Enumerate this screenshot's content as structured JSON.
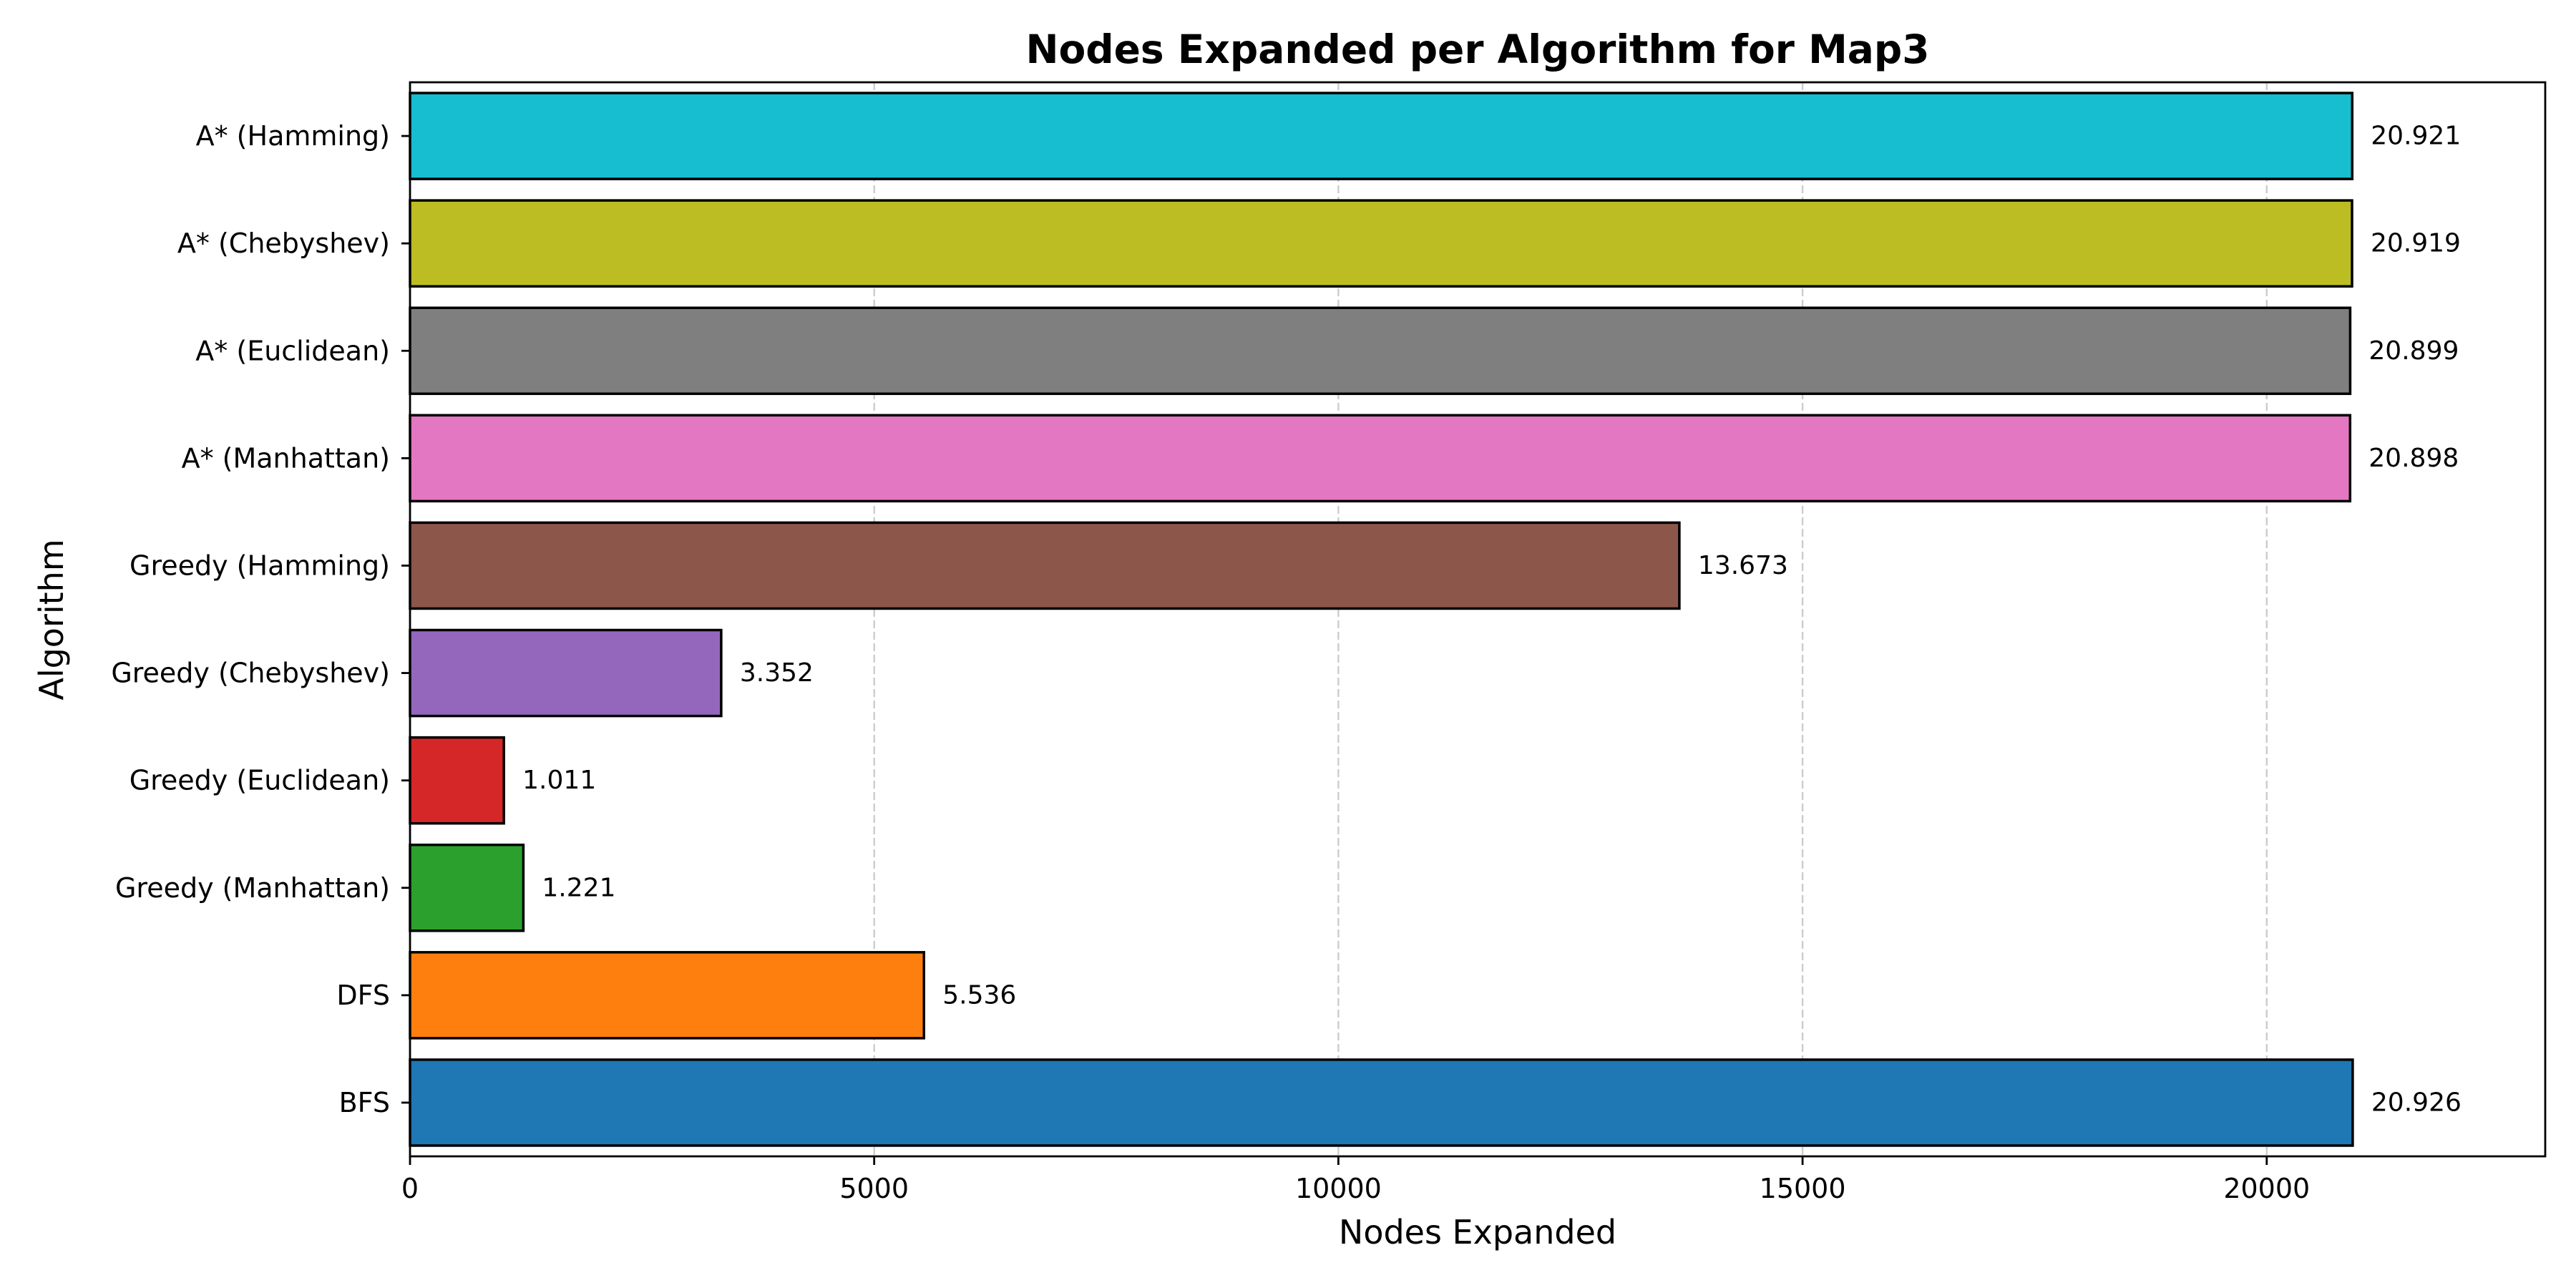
{
  "chart_data": {
    "type": "bar",
    "orientation": "horizontal",
    "title": "Nodes Expanded per Algorithm for Map3",
    "xlabel": "Nodes Expanded",
    "ylabel": "Algorithm",
    "xlim": [
      0,
      23000
    ],
    "xticks": [
      0,
      5000,
      10000,
      15000,
      20000
    ],
    "xtick_labels": [
      "0",
      "5000",
      "10000",
      "15000",
      "20000"
    ],
    "grid": "x, dashed",
    "categories": [
      "BFS",
      "DFS",
      "Greedy (Manhattan)",
      "Greedy (Euclidean)",
      "Greedy (Chebyshev)",
      "Greedy (Hamming)",
      "A* (Manhattan)",
      "A* (Euclidean)",
      "A* (Chebyshev)",
      "A* (Hamming)"
    ],
    "values": [
      20926,
      5536,
      1221,
      1011,
      3352,
      13673,
      20898,
      20899,
      20919,
      20921
    ],
    "value_labels": [
      "20.926",
      "5.536",
      "1.221",
      "1.011",
      "3.352",
      "13.673",
      "20.898",
      "20.899",
      "20.919",
      "20.921"
    ],
    "colors": [
      "#1f77b4",
      "#ff7f0e",
      "#2ca02c",
      "#d62728",
      "#9467bd",
      "#8c564b",
      "#e377c2",
      "#7f7f7f",
      "#bcbd22",
      "#17becf"
    ]
  }
}
